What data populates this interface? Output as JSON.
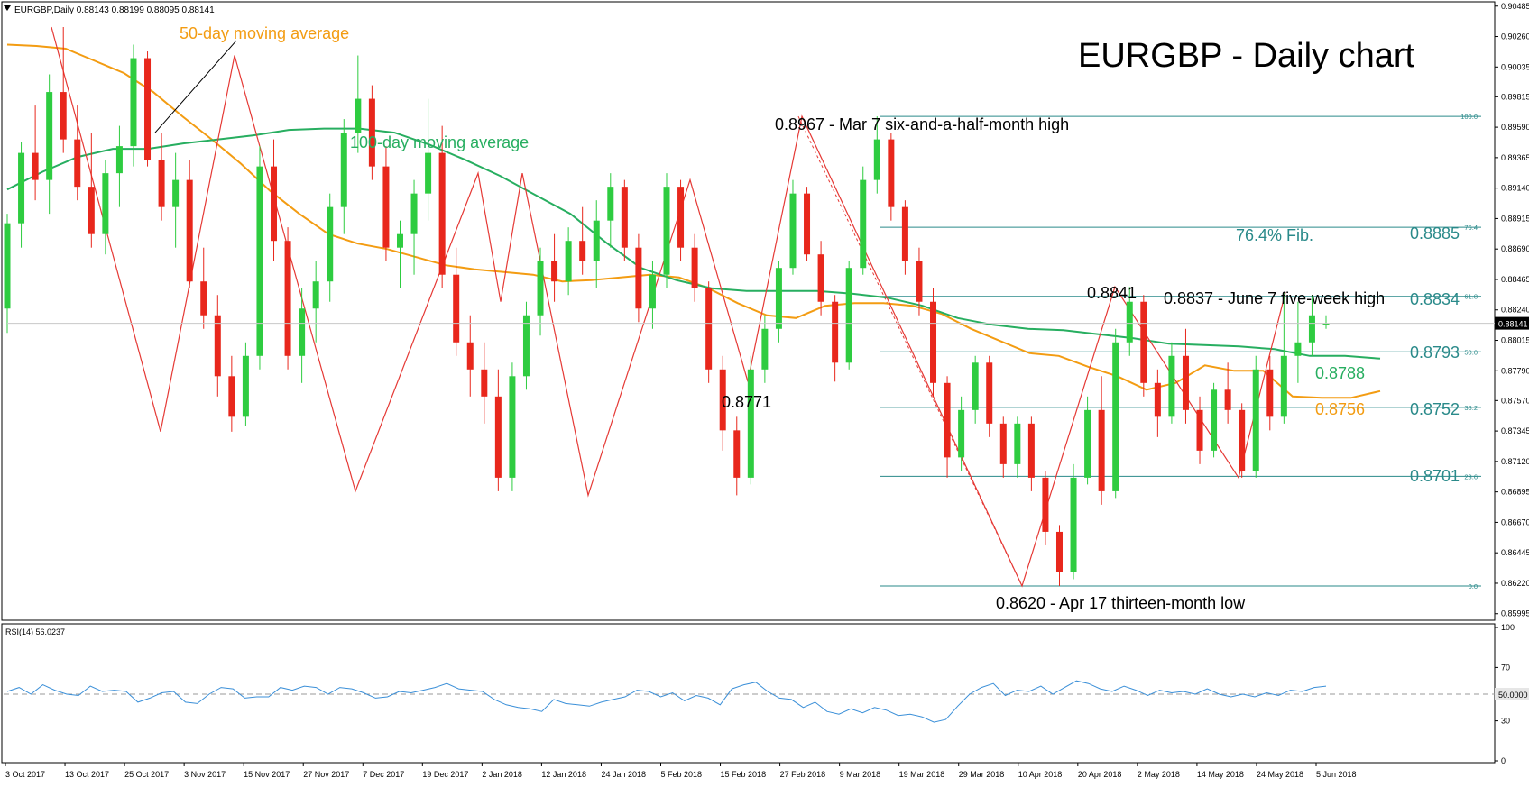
{
  "header": {
    "symbol_line": "EURGBP,Daily  0.88143 0.88199 0.88095 0.88141",
    "title": "EURGBP - Daily chart"
  },
  "annotations": {
    "ma50": "50-day moving average",
    "ma100": "100-day moving average",
    "high": "0.8967 - Mar 7 six-and-a-half-month high",
    "low": "0.8620 - Apr 17 thirteen-month low",
    "jun_high": "0.8837 - June 7 five-week high",
    "may_high": "0.8841",
    "feb_low": "0.8771",
    "fib764": "76.4% Fib.",
    "fib764_val": "0.8885",
    "fib618_val": "0.8834",
    "fib50_val": "0.8793",
    "fib382_val": "0.8752",
    "fib236_val": "0.8701",
    "ma100_val": "0.8788",
    "ma50_val": "0.8756"
  },
  "rsi": {
    "label": "RSI(14) 56.0237",
    "current_label": "50.0000"
  },
  "chart_data": [
    {
      "type": "candlestick",
      "title": "EURGBP - Daily chart",
      "ylim": [
        0.8596,
        0.9049
      ],
      "price_ticks": [
        "0.90485",
        "0.90260",
        "0.90035",
        "0.89815",
        "0.89590",
        "0.89365",
        "0.89140",
        "0.88915",
        "0.88690",
        "0.88465",
        "0.88240",
        "0.88015",
        "0.87790",
        "0.87570",
        "0.87345",
        "0.87120",
        "0.86895",
        "0.86670",
        "0.86445",
        "0.86220",
        "0.85995"
      ],
      "current_price": "0.88141",
      "x_tick_labels": [
        "3 Oct 2017",
        "13 Oct 2017",
        "25 Oct 2017",
        "3 Nov 2017",
        "15 Nov 2017",
        "27 Nov 2017",
        "7 Dec 2017",
        "19 Dec 2017",
        "2 Jan 2018",
        "12 Jan 2018",
        "24 Jan 2018",
        "5 Feb 2018",
        "15 Feb 2018",
        "27 Feb 2018",
        "9 Mar 2018",
        "19 Mar 2018",
        "29 Mar 2018",
        "10 Apr 2018",
        "20 Apr 2018",
        "2 May 2018",
        "14 May 2018",
        "24 May 2018",
        "5 Jun 2018"
      ],
      "fibonacci": {
        "levels": [
          {
            "label": "100.0",
            "value": 0.8967
          },
          {
            "label": "76.4",
            "value": 0.8885
          },
          {
            "label": "61.8",
            "value": 0.8834
          },
          {
            "label": "50.0",
            "value": 0.8793
          },
          {
            "label": "38.2",
            "value": 0.8752
          },
          {
            "label": "23.6",
            "value": 0.8701
          },
          {
            "label": "0.0",
            "value": 0.862
          }
        ]
      },
      "swing_points": [
        0.9033,
        0.8734,
        0.9012,
        0.869,
        0.8925,
        0.883,
        0.8925,
        0.8687,
        0.892,
        0.8771,
        0.8967,
        0.862,
        0.8841,
        0.87,
        0.8837
      ],
      "series": [
        {
          "name": "50-day moving average",
          "color": "#f39c12",
          "values": [
            0.902,
            0.9019,
            0.9017,
            0.9008,
            0.8999,
            0.8985,
            0.8967,
            0.895,
            0.8932,
            0.8912,
            0.8895,
            0.888,
            0.8873,
            0.8869,
            0.8863,
            0.8857,
            0.8854,
            0.8852,
            0.885,
            0.8845,
            0.8846,
            0.8848,
            0.885,
            0.8848,
            0.884,
            0.8829,
            0.882,
            0.8818,
            0.8827,
            0.8829,
            0.8829,
            0.8827,
            0.8821,
            0.881,
            0.8801,
            0.8792,
            0.879,
            0.8782,
            0.8775,
            0.8765,
            0.877,
            0.8783,
            0.8779,
            0.8779,
            0.876,
            0.8759,
            0.8759,
            0.8764
          ]
        },
        {
          "name": "100-day moving average",
          "color": "#27ae60",
          "values": [
            0.8913,
            0.8926,
            0.8937,
            0.8943,
            0.8943,
            0.8947,
            0.895,
            0.8953,
            0.8957,
            0.8958,
            0.8958,
            0.8955,
            0.8946,
            0.8935,
            0.8923,
            0.8909,
            0.8895,
            0.8874,
            0.8855,
            0.8846,
            0.884,
            0.8838,
            0.8838,
            0.8838,
            0.8836,
            0.8833,
            0.8827,
            0.8818,
            0.8813,
            0.881,
            0.8809,
            0.8806,
            0.8803,
            0.8799,
            0.8798,
            0.8797,
            0.8795,
            0.879,
            0.879,
            0.8788
          ]
        }
      ],
      "candles": [
        {
          "o": 0.8825,
          "h": 0.8895,
          "l": 0.8807,
          "c": 0.8888
        },
        {
          "o": 0.8888,
          "h": 0.8948,
          "l": 0.887,
          "c": 0.894
        },
        {
          "o": 0.894,
          "h": 0.8975,
          "l": 0.8905,
          "c": 0.892
        },
        {
          "o": 0.892,
          "h": 0.8998,
          "l": 0.8895,
          "c": 0.8985
        },
        {
          "o": 0.8985,
          "h": 0.9033,
          "l": 0.894,
          "c": 0.895
        },
        {
          "o": 0.895,
          "h": 0.8975,
          "l": 0.8905,
          "c": 0.8915
        },
        {
          "o": 0.8915,
          "h": 0.8955,
          "l": 0.887,
          "c": 0.888
        },
        {
          "o": 0.888,
          "h": 0.8935,
          "l": 0.8865,
          "c": 0.8925
        },
        {
          "o": 0.8925,
          "h": 0.896,
          "l": 0.89,
          "c": 0.8945
        },
        {
          "o": 0.8945,
          "h": 0.902,
          "l": 0.893,
          "c": 0.901
        },
        {
          "o": 0.901,
          "h": 0.9015,
          "l": 0.893,
          "c": 0.8935
        },
        {
          "o": 0.8935,
          "h": 0.8955,
          "l": 0.889,
          "c": 0.89
        },
        {
          "o": 0.89,
          "h": 0.894,
          "l": 0.887,
          "c": 0.892
        },
        {
          "o": 0.892,
          "h": 0.8935,
          "l": 0.884,
          "c": 0.8845
        },
        {
          "o": 0.8845,
          "h": 0.887,
          "l": 0.881,
          "c": 0.882
        },
        {
          "o": 0.882,
          "h": 0.8835,
          "l": 0.876,
          "c": 0.8775
        },
        {
          "o": 0.8775,
          "h": 0.879,
          "l": 0.8734,
          "c": 0.8745
        },
        {
          "o": 0.8745,
          "h": 0.88,
          "l": 0.8738,
          "c": 0.879
        },
        {
          "o": 0.879,
          "h": 0.8945,
          "l": 0.878,
          "c": 0.893
        },
        {
          "o": 0.893,
          "h": 0.895,
          "l": 0.886,
          "c": 0.8875
        },
        {
          "o": 0.8875,
          "h": 0.8885,
          "l": 0.878,
          "c": 0.879
        },
        {
          "o": 0.879,
          "h": 0.884,
          "l": 0.877,
          "c": 0.8825
        },
        {
          "o": 0.8825,
          "h": 0.886,
          "l": 0.88,
          "c": 0.8845
        },
        {
          "o": 0.8845,
          "h": 0.891,
          "l": 0.883,
          "c": 0.89
        },
        {
          "o": 0.89,
          "h": 0.8965,
          "l": 0.888,
          "c": 0.8955
        },
        {
          "o": 0.8955,
          "h": 0.9012,
          "l": 0.894,
          "c": 0.898
        },
        {
          "o": 0.898,
          "h": 0.899,
          "l": 0.892,
          "c": 0.893
        },
        {
          "o": 0.893,
          "h": 0.8945,
          "l": 0.886,
          "c": 0.887
        },
        {
          "o": 0.887,
          "h": 0.889,
          "l": 0.884,
          "c": 0.888
        },
        {
          "o": 0.888,
          "h": 0.892,
          "l": 0.885,
          "c": 0.891
        },
        {
          "o": 0.891,
          "h": 0.898,
          "l": 0.889,
          "c": 0.894
        },
        {
          "o": 0.894,
          "h": 0.896,
          "l": 0.884,
          "c": 0.885
        },
        {
          "o": 0.885,
          "h": 0.887,
          "l": 0.879,
          "c": 0.88
        },
        {
          "o": 0.88,
          "h": 0.882,
          "l": 0.876,
          "c": 0.878
        },
        {
          "o": 0.878,
          "h": 0.88,
          "l": 0.874,
          "c": 0.876
        },
        {
          "o": 0.876,
          "h": 0.878,
          "l": 0.869,
          "c": 0.87
        },
        {
          "o": 0.87,
          "h": 0.8785,
          "l": 0.869,
          "c": 0.8775
        },
        {
          "o": 0.8775,
          "h": 0.883,
          "l": 0.8765,
          "c": 0.882
        },
        {
          "o": 0.882,
          "h": 0.887,
          "l": 0.8805,
          "c": 0.886
        },
        {
          "o": 0.886,
          "h": 0.888,
          "l": 0.883,
          "c": 0.8845
        },
        {
          "o": 0.8845,
          "h": 0.8885,
          "l": 0.8835,
          "c": 0.8875
        },
        {
          "o": 0.8875,
          "h": 0.89,
          "l": 0.885,
          "c": 0.886
        },
        {
          "o": 0.886,
          "h": 0.8905,
          "l": 0.884,
          "c": 0.889
        },
        {
          "o": 0.889,
          "h": 0.8925,
          "l": 0.887,
          "c": 0.8915
        },
        {
          "o": 0.8915,
          "h": 0.892,
          "l": 0.886,
          "c": 0.887
        },
        {
          "o": 0.887,
          "h": 0.888,
          "l": 0.8815,
          "c": 0.8825
        },
        {
          "o": 0.8825,
          "h": 0.886,
          "l": 0.881,
          "c": 0.885
        },
        {
          "o": 0.885,
          "h": 0.8925,
          "l": 0.884,
          "c": 0.8915
        },
        {
          "o": 0.8915,
          "h": 0.892,
          "l": 0.886,
          "c": 0.887
        },
        {
          "o": 0.887,
          "h": 0.888,
          "l": 0.883,
          "c": 0.884
        },
        {
          "o": 0.884,
          "h": 0.8845,
          "l": 0.877,
          "c": 0.878
        },
        {
          "o": 0.878,
          "h": 0.879,
          "l": 0.872,
          "c": 0.8735
        },
        {
          "o": 0.8735,
          "h": 0.8745,
          "l": 0.8687,
          "c": 0.87
        },
        {
          "o": 0.87,
          "h": 0.879,
          "l": 0.8695,
          "c": 0.878
        },
        {
          "o": 0.878,
          "h": 0.882,
          "l": 0.877,
          "c": 0.881
        },
        {
          "o": 0.881,
          "h": 0.886,
          "l": 0.88,
          "c": 0.8855
        },
        {
          "o": 0.8855,
          "h": 0.892,
          "l": 0.885,
          "c": 0.891
        },
        {
          "o": 0.891,
          "h": 0.8915,
          "l": 0.886,
          "c": 0.8865
        },
        {
          "o": 0.8865,
          "h": 0.8875,
          "l": 0.882,
          "c": 0.883
        },
        {
          "o": 0.883,
          "h": 0.8835,
          "l": 0.8771,
          "c": 0.8785
        },
        {
          "o": 0.8785,
          "h": 0.886,
          "l": 0.878,
          "c": 0.8855
        },
        {
          "o": 0.8855,
          "h": 0.893,
          "l": 0.885,
          "c": 0.892
        },
        {
          "o": 0.892,
          "h": 0.8967,
          "l": 0.891,
          "c": 0.895
        },
        {
          "o": 0.895,
          "h": 0.8955,
          "l": 0.889,
          "c": 0.89
        },
        {
          "o": 0.89,
          "h": 0.8905,
          "l": 0.885,
          "c": 0.886
        },
        {
          "o": 0.886,
          "h": 0.887,
          "l": 0.882,
          "c": 0.883
        },
        {
          "o": 0.883,
          "h": 0.884,
          "l": 0.876,
          "c": 0.877
        },
        {
          "o": 0.877,
          "h": 0.8775,
          "l": 0.87,
          "c": 0.8715
        },
        {
          "o": 0.8715,
          "h": 0.876,
          "l": 0.8705,
          "c": 0.875
        },
        {
          "o": 0.875,
          "h": 0.879,
          "l": 0.874,
          "c": 0.8785
        },
        {
          "o": 0.8785,
          "h": 0.879,
          "l": 0.873,
          "c": 0.874
        },
        {
          "o": 0.874,
          "h": 0.8745,
          "l": 0.87,
          "c": 0.871
        },
        {
          "o": 0.871,
          "h": 0.8745,
          "l": 0.87,
          "c": 0.874
        },
        {
          "o": 0.874,
          "h": 0.8745,
          "l": 0.869,
          "c": 0.87
        },
        {
          "o": 0.87,
          "h": 0.8705,
          "l": 0.865,
          "c": 0.866
        },
        {
          "o": 0.866,
          "h": 0.8665,
          "l": 0.862,
          "c": 0.863
        },
        {
          "o": 0.863,
          "h": 0.871,
          "l": 0.8625,
          "c": 0.87
        },
        {
          "o": 0.87,
          "h": 0.876,
          "l": 0.8695,
          "c": 0.875
        },
        {
          "o": 0.875,
          "h": 0.8775,
          "l": 0.868,
          "c": 0.869
        },
        {
          "o": 0.869,
          "h": 0.881,
          "l": 0.8685,
          "c": 0.88
        },
        {
          "o": 0.88,
          "h": 0.8841,
          "l": 0.879,
          "c": 0.883
        },
        {
          "o": 0.883,
          "h": 0.8835,
          "l": 0.876,
          "c": 0.877
        },
        {
          "o": 0.877,
          "h": 0.878,
          "l": 0.873,
          "c": 0.8745
        },
        {
          "o": 0.8745,
          "h": 0.88,
          "l": 0.874,
          "c": 0.879
        },
        {
          "o": 0.879,
          "h": 0.881,
          "l": 0.874,
          "c": 0.875
        },
        {
          "o": 0.875,
          "h": 0.876,
          "l": 0.871,
          "c": 0.872
        },
        {
          "o": 0.872,
          "h": 0.877,
          "l": 0.8715,
          "c": 0.8765
        },
        {
          "o": 0.8765,
          "h": 0.8785,
          "l": 0.874,
          "c": 0.875
        },
        {
          "o": 0.875,
          "h": 0.8755,
          "l": 0.87,
          "c": 0.8705
        },
        {
          "o": 0.8705,
          "h": 0.879,
          "l": 0.87,
          "c": 0.878
        },
        {
          "o": 0.878,
          "h": 0.879,
          "l": 0.8735,
          "c": 0.8745
        },
        {
          "o": 0.8745,
          "h": 0.8837,
          "l": 0.874,
          "c": 0.879
        },
        {
          "o": 0.879,
          "h": 0.883,
          "l": 0.877,
          "c": 0.88
        },
        {
          "o": 0.88,
          "h": 0.8835,
          "l": 0.879,
          "c": 0.882
        },
        {
          "o": 0.8814,
          "h": 0.882,
          "l": 0.881,
          "c": 0.8814
        }
      ]
    },
    {
      "type": "line",
      "title": "RSI(14) 56.0237",
      "ylim": [
        0,
        100
      ],
      "y_ticks": [
        "100",
        "70",
        "30",
        "0"
      ],
      "reference_line": 50,
      "series": [
        {
          "name": "RSI(14)",
          "color": "#3a8fd8",
          "values": [
            52,
            55,
            50,
            57,
            53,
            50,
            49,
            56,
            52,
            53,
            52,
            44,
            47,
            51,
            52,
            44,
            43,
            50,
            55,
            54,
            47,
            48,
            48,
            55,
            53,
            56,
            55,
            50,
            55,
            54,
            51,
            47,
            48,
            52,
            51,
            53,
            55,
            58,
            54,
            53,
            52,
            46,
            42,
            40,
            39,
            37,
            46,
            43,
            42,
            41,
            44,
            46,
            48,
            53,
            52,
            48,
            51,
            45,
            49,
            47,
            42,
            54,
            57,
            59,
            52,
            47,
            46,
            40,
            44,
            37,
            35,
            39,
            36,
            40,
            38,
            34,
            35,
            33,
            29,
            31,
            41,
            50,
            55,
            58,
            49,
            53,
            52,
            56,
            50,
            55,
            60,
            58,
            54,
            52,
            56,
            53,
            49,
            53,
            51,
            52,
            50,
            54,
            50,
            48,
            50,
            48,
            51,
            49,
            53,
            52,
            55,
            56
          ]
        }
      ]
    }
  ]
}
